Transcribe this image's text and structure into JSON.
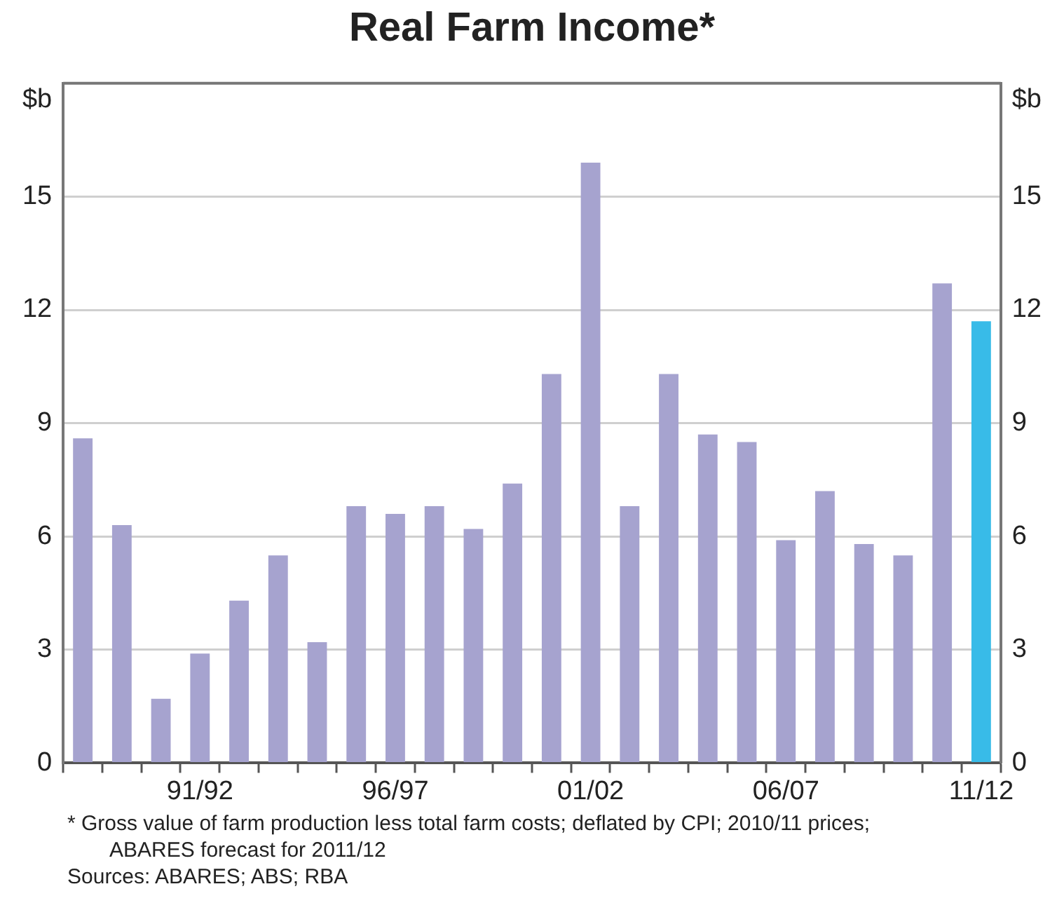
{
  "chart_data": {
    "type": "bar",
    "title": "Real Farm Income*",
    "ylabel": "$b",
    "y2label": "$b",
    "categories": [
      null,
      null,
      null,
      "91/92",
      null,
      null,
      null,
      null,
      "96/97",
      null,
      null,
      null,
      null,
      "01/02",
      null,
      null,
      null,
      null,
      "06/07",
      null,
      null,
      null,
      null,
      "11/12"
    ],
    "values": [
      8.6,
      6.3,
      1.7,
      2.9,
      4.3,
      5.5,
      3.2,
      6.8,
      6.6,
      6.8,
      6.2,
      7.4,
      10.3,
      15.9,
      6.8,
      10.3,
      8.7,
      8.5,
      5.9,
      7.2,
      5.8,
      5.5,
      12.7,
      11.7
    ],
    "colors": [
      "#a6a3cf",
      "#a6a3cf",
      "#a6a3cf",
      "#a6a3cf",
      "#a6a3cf",
      "#a6a3cf",
      "#a6a3cf",
      "#a6a3cf",
      "#a6a3cf",
      "#a6a3cf",
      "#a6a3cf",
      "#a6a3cf",
      "#a6a3cf",
      "#a6a3cf",
      "#a6a3cf",
      "#a6a3cf",
      "#a6a3cf",
      "#a6a3cf",
      "#a6a3cf",
      "#a6a3cf",
      "#a6a3cf",
      "#a6a3cf",
      "#a6a3cf",
      "#38bbe8"
    ],
    "ylim": [
      0,
      18
    ],
    "yticks": [
      0,
      3,
      6,
      9,
      12,
      15
    ],
    "y2lim": [
      0,
      18
    ],
    "y2ticks": [
      0,
      3,
      6,
      9,
      12,
      15
    ],
    "grid": "y",
    "legend": false,
    "annotations": [
      "*  Gross value of farm production less total farm costs; deflated by CPI; 2010/11 prices; ABARES forecast for 2011/12",
      "Sources: ABARES; ABS; RBA"
    ]
  }
}
